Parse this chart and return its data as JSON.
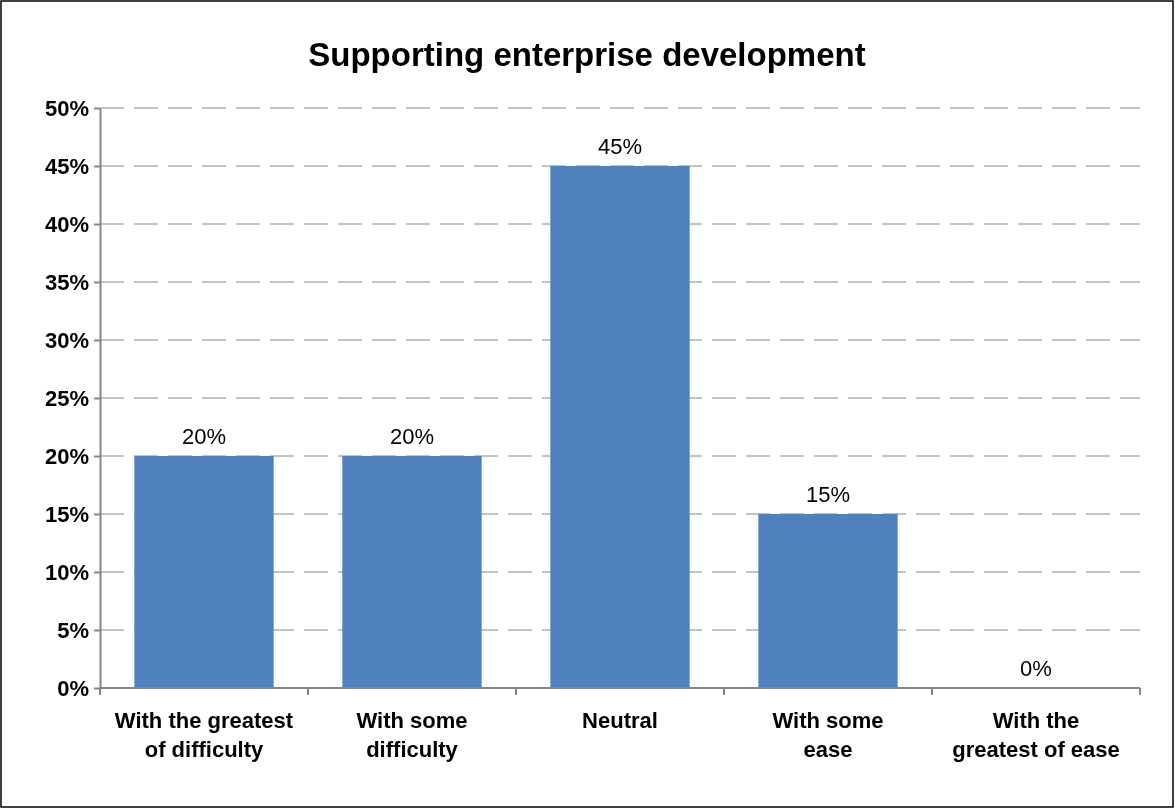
{
  "chart_data": {
    "type": "bar",
    "title": "Supporting enterprise development",
    "categories": [
      "With the greatest of difficulty",
      "With some difficulty",
      "Neutral",
      "With some ease",
      "With the greatest of ease"
    ],
    "values": [
      20,
      20,
      45,
      15,
      0
    ],
    "color": "#4f81bd",
    "value_labels": [
      "20%",
      "20%",
      "45%",
      "15%",
      "0%"
    ],
    "ylim": [
      0,
      50
    ],
    "yticks": [
      {
        "value": 0,
        "label": "0%"
      },
      {
        "value": 5,
        "label": "5%"
      },
      {
        "value": 10,
        "label": "10%"
      },
      {
        "value": 15,
        "label": "15%"
      },
      {
        "value": 20,
        "label": "20%"
      },
      {
        "value": 25,
        "label": "25%"
      },
      {
        "value": 30,
        "label": "30%"
      },
      {
        "value": 35,
        "label": "35%"
      },
      {
        "value": 40,
        "label": "40%"
      },
      {
        "value": 45,
        "label": "45%"
      },
      {
        "value": 50,
        "label": "50%"
      }
    ],
    "grid": "y"
  }
}
